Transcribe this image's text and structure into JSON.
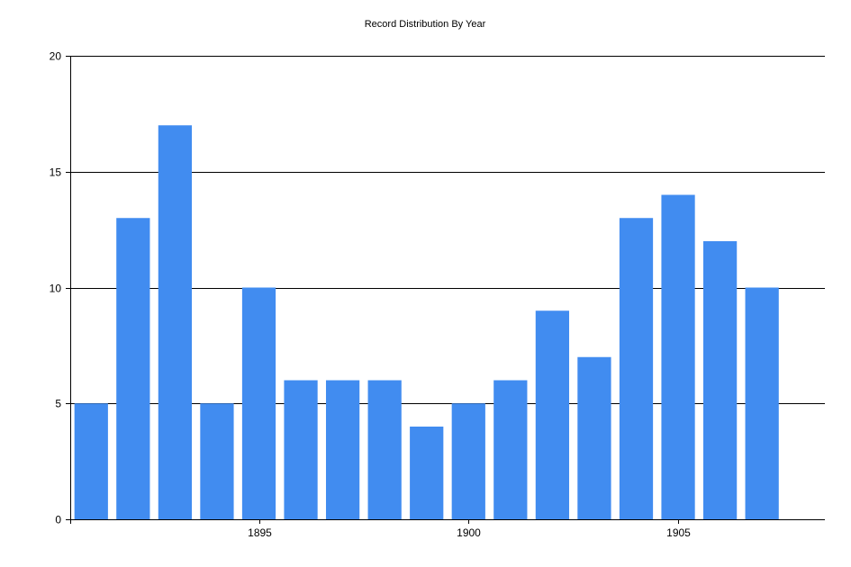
{
  "chart_data": {
    "type": "bar",
    "title": "Record Distribution By Year",
    "xlabel": "",
    "ylabel": "",
    "x": [
      1891,
      1892,
      1893,
      1894,
      1895,
      1896,
      1897,
      1898,
      1899,
      1900,
      1901,
      1902,
      1903,
      1904,
      1905,
      1906,
      1907
    ],
    "values": [
      5,
      13,
      17,
      5,
      10,
      6,
      6,
      6,
      4,
      5,
      6,
      9,
      7,
      13,
      14,
      12,
      10
    ],
    "xlim": [
      1890.5,
      1908.5
    ],
    "ylim": [
      0,
      20
    ],
    "y_ticks": [
      0,
      5,
      10,
      15,
      20
    ],
    "x_ticks": [
      1895,
      1900,
      1905
    ],
    "grid": "horizontal",
    "bar_color": "#418CF0"
  }
}
